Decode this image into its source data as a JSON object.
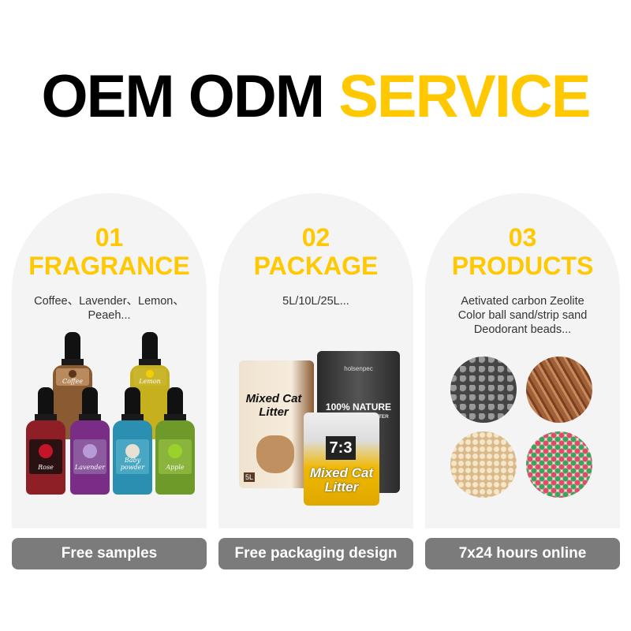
{
  "title": {
    "part1": "OEM ODM",
    "part2": "SERVICE"
  },
  "colors": {
    "accent": "#ffc800",
    "card_bg": "#f4f4f4",
    "button_bg": "#7b7b7b"
  },
  "cards": [
    {
      "number": "01",
      "heading": "FRAGRANCE",
      "description": "Coffee、Lavender、Lemon、Peaeh...",
      "button": "Free samples",
      "bottles": [
        "Rose",
        "Lavender",
        "Baby powder",
        "Apple",
        "Coffee",
        "Lemon"
      ]
    },
    {
      "number": "02",
      "heading": "PACKAGE",
      "description": "5L/10L/25L...",
      "button": "Free packaging design",
      "packages": {
        "bag1": "Mixed Cat Litter",
        "bag1_size": "5L",
        "bag2_brand": "holsenpec",
        "bag2": "100% NATURE",
        "bag2_sub": "BENTONITE CAT LITTER",
        "bag3_ratio": "7:3",
        "bag3": "Mixed Cat Litter"
      }
    },
    {
      "number": "03",
      "heading": "PRODUCTS",
      "description_lines": [
        "Aetivated carbon Zeolite",
        "Color ball sand/strip sand",
        "Deodorant beads..."
      ],
      "button": "7x24 hours online"
    }
  ]
}
